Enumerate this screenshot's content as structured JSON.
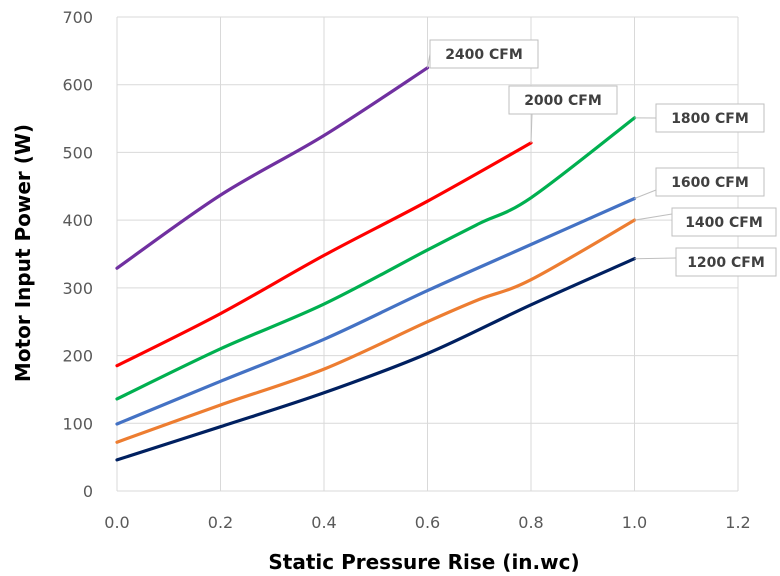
{
  "chart_data": {
    "type": "line",
    "title": "",
    "xlabel": "Static Pressure Rise (in.wc)",
    "ylabel": "Motor Input Power (W)",
    "xlim": [
      0,
      1.2
    ],
    "ylim": [
      0,
      700
    ],
    "x_ticks": [
      "0.0",
      "0.2",
      "0.4",
      "0.6",
      "0.8",
      "1.0",
      "1.2"
    ],
    "y_ticks": [
      "0",
      "100",
      "200",
      "300",
      "400",
      "500",
      "600",
      "700"
    ],
    "grid": true,
    "legend": "none (data callouts at line ends)",
    "series": [
      {
        "name": "1200 CFM",
        "color": "#002060",
        "x": [
          0,
          0.2,
          0.4,
          0.6,
          0.8,
          1.0
        ],
        "y": [
          46,
          95,
          145,
          203,
          275,
          343
        ]
      },
      {
        "name": "1400 CFM",
        "color": "#ed7d31",
        "x": [
          0,
          0.2,
          0.4,
          0.6,
          0.7,
          0.8,
          1.0
        ],
        "y": [
          72,
          127,
          180,
          250,
          283,
          312,
          400
        ]
      },
      {
        "name": "1600 CFM",
        "color": "#4472c4",
        "x": [
          0,
          0.2,
          0.4,
          0.6,
          0.8,
          1.0
        ],
        "y": [
          99,
          162,
          224,
          296,
          364,
          432
        ]
      },
      {
        "name": "1800 CFM",
        "color": "#00b050",
        "x": [
          0,
          0.2,
          0.4,
          0.6,
          0.7,
          0.8,
          1.0
        ],
        "y": [
          136,
          210,
          276,
          356,
          395,
          433,
          551
        ]
      },
      {
        "name": "2000 CFM",
        "color": "#ff0000",
        "x": [
          0,
          0.2,
          0.4,
          0.6,
          0.8
        ],
        "y": [
          185,
          262,
          348,
          428,
          514
        ]
      },
      {
        "name": "2400 CFM",
        "color": "#7030a0",
        "x": [
          0,
          0.2,
          0.4,
          0.6
        ],
        "y": [
          329,
          437,
          525,
          625
        ]
      }
    ]
  }
}
